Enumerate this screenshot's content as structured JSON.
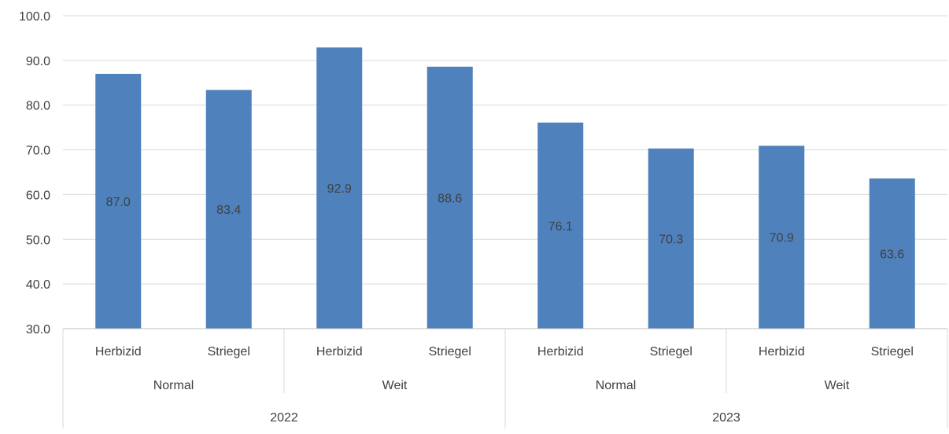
{
  "chart_data": {
    "type": "bar",
    "title": "",
    "xlabel": "",
    "ylabel": "",
    "ylim": [
      30,
      100
    ],
    "yticks": [
      "30.0",
      "40.0",
      "50.0",
      "60.0",
      "70.0",
      "80.0",
      "90.0",
      "100.0"
    ],
    "grid": true,
    "legend": "none",
    "bar_color": "#4f81bd",
    "categories": [
      {
        "year": "2022",
        "group": "Normal",
        "label": "Herbizid",
        "value": 87.0,
        "value_label": "87.0"
      },
      {
        "year": "2022",
        "group": "Normal",
        "label": "Striegel",
        "value": 83.4,
        "value_label": "83.4"
      },
      {
        "year": "2022",
        "group": "Weit",
        "label": "Herbizid",
        "value": 92.9,
        "value_label": "92.9"
      },
      {
        "year": "2022",
        "group": "Weit",
        "label": "Striegel",
        "value": 88.6,
        "value_label": "88.6"
      },
      {
        "year": "2023",
        "group": "Normal",
        "label": "Herbizid",
        "value": 76.1,
        "value_label": "76.1"
      },
      {
        "year": "2023",
        "group": "Normal",
        "label": "Striegel",
        "value": 70.3,
        "value_label": "70.3"
      },
      {
        "year": "2023",
        "group": "Weit",
        "label": "Herbizid",
        "value": 70.9,
        "value_label": "70.9"
      },
      {
        "year": "2023",
        "group": "Weit",
        "label": "Striegel",
        "value": 63.6,
        "value_label": "63.6"
      }
    ],
    "groups": [
      {
        "label": "Normal",
        "year": "2022"
      },
      {
        "label": "Weit",
        "year": "2022"
      },
      {
        "label": "Normal",
        "year": "2023"
      },
      {
        "label": "Weit",
        "year": "2023"
      }
    ],
    "years": [
      "2022",
      "2023"
    ]
  }
}
